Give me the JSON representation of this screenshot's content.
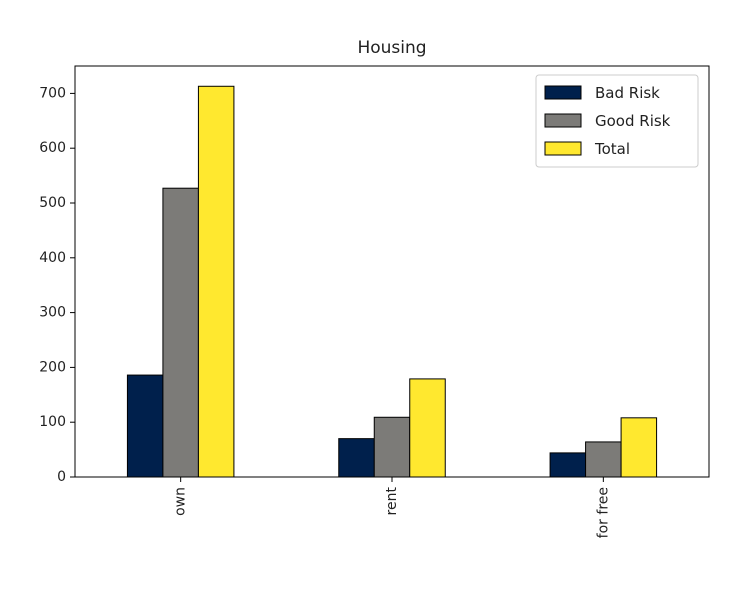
{
  "chart_data": {
    "type": "bar",
    "title": "Housing",
    "xlabel": "",
    "ylabel": "",
    "categories": [
      "own",
      "rent",
      "for free"
    ],
    "series": [
      {
        "name": "Bad Risk",
        "color": "#00204c",
        "values": [
          186,
          70,
          44
        ]
      },
      {
        "name": "Good Risk",
        "color": "#7c7b78",
        "values": [
          527,
          109,
          64
        ]
      },
      {
        "name": "Total",
        "color": "#ffe82f",
        "values": [
          713,
          179,
          108
        ]
      }
    ],
    "ylim": [
      0,
      750
    ],
    "yticks": [
      0,
      100,
      200,
      300,
      400,
      500,
      600,
      700
    ],
    "grid": false,
    "legend_position": "top-right"
  }
}
